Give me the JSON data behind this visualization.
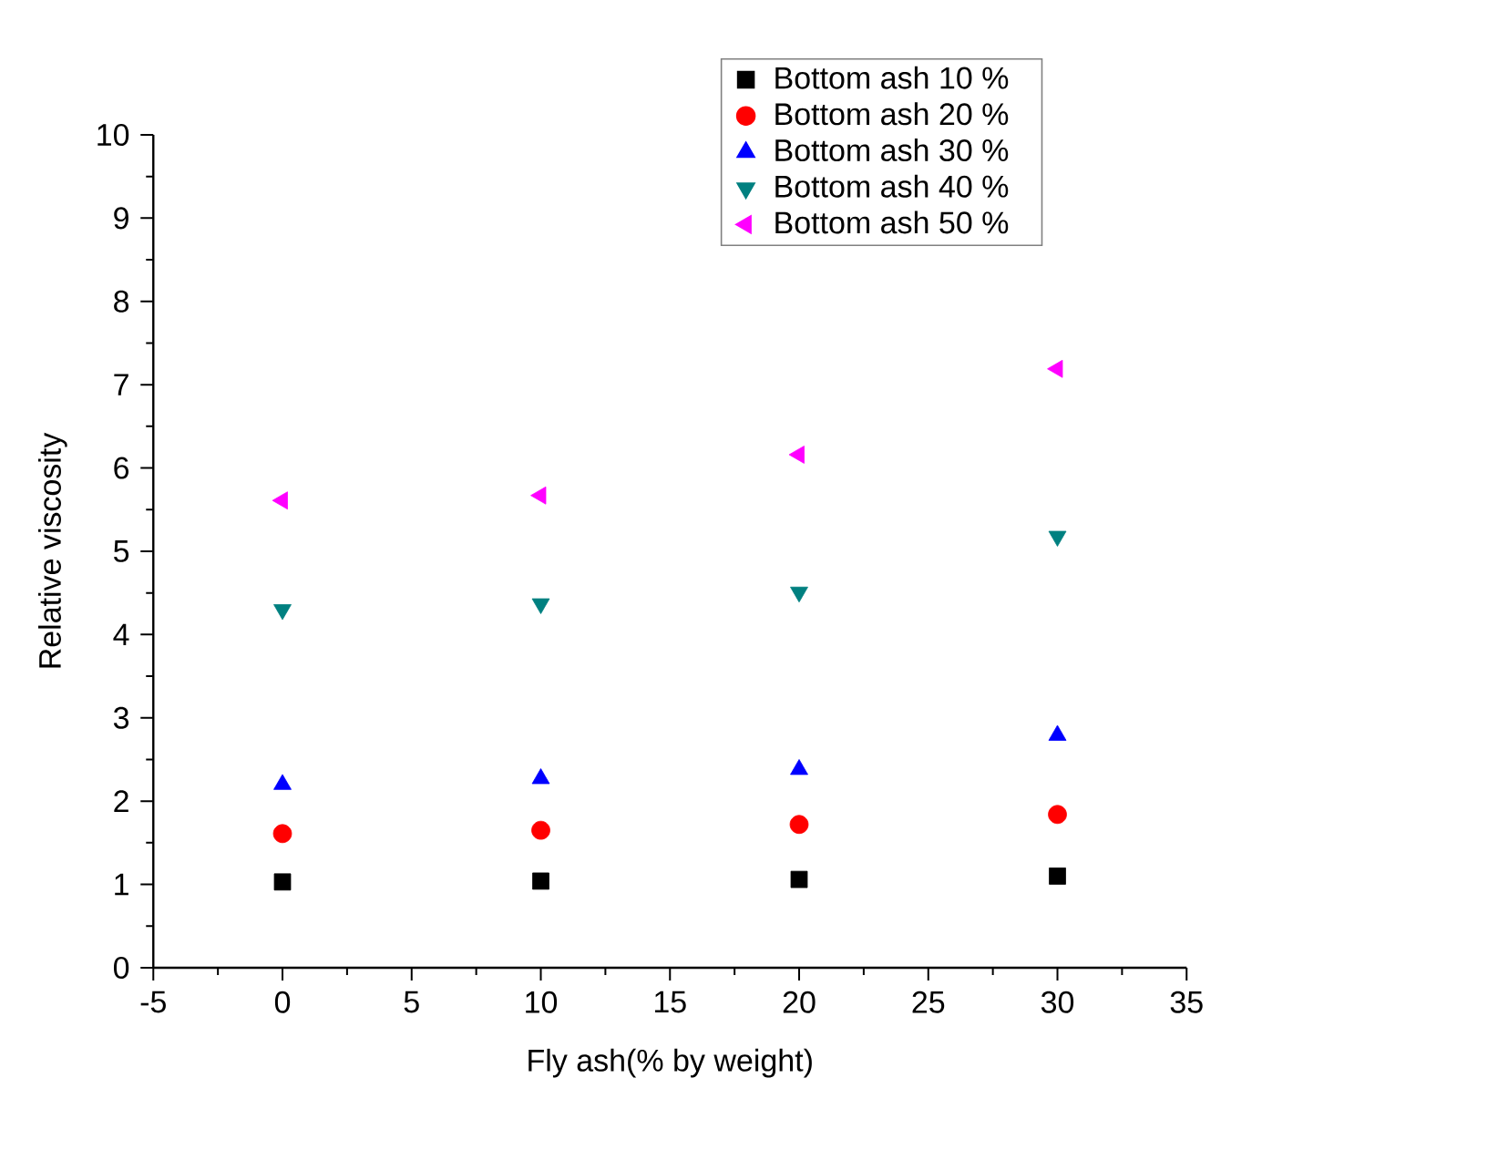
{
  "chart_data": {
    "type": "scatter",
    "xlabel": "Fly ash(% by weight)",
    "ylabel": "Relative viscosity",
    "x": [
      0,
      10,
      20,
      30
    ],
    "series": [
      {
        "name": "Bottom ash 10 %",
        "color": "#000000",
        "marker": "square",
        "values": [
          1.03,
          1.04,
          1.06,
          1.1
        ]
      },
      {
        "name": "Bottom ash  20 %",
        "color": "#ff0000",
        "marker": "circle",
        "values": [
          1.61,
          1.65,
          1.72,
          1.84
        ]
      },
      {
        "name": "Bottom ash 30 %",
        "color": "#0000ff",
        "marker": "triangle",
        "values": [
          2.2,
          2.27,
          2.38,
          2.79
        ]
      },
      {
        "name": "Bottom ash 40 %",
        "color": "#008080",
        "marker": "triangle-down",
        "values": [
          4.3,
          4.37,
          4.51,
          5.18
        ]
      },
      {
        "name": "Bottom ash 50 %",
        "color": "#ff00ff",
        "marker": "triangle-left",
        "values": [
          5.61,
          5.67,
          6.16,
          7.19
        ]
      }
    ],
    "xlim": [
      -5,
      35
    ],
    "xticks": [
      -5,
      0,
      5,
      10,
      15,
      20,
      25,
      30,
      35
    ],
    "ylim": [
      0,
      10
    ],
    "yticks": [
      0,
      1,
      2,
      3,
      4,
      5,
      6,
      7,
      8,
      9,
      10
    ],
    "grid": false,
    "legend": "top right"
  }
}
